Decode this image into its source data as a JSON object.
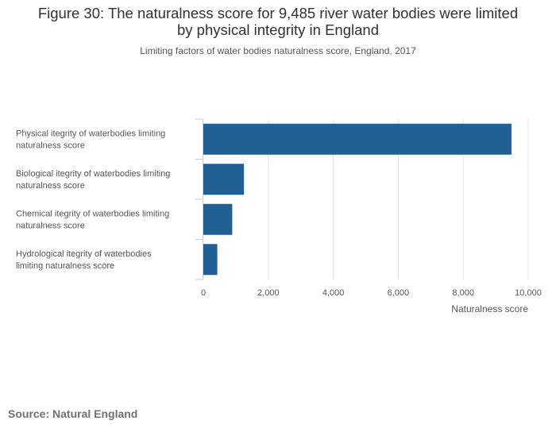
{
  "title": {
    "line1": "Figure 30: The naturalness score for 9,485 river water bodies were limited",
    "line2": "by physical integrity in England"
  },
  "subtitle": "Limiting factors of water bodies naturalness score, England, 2017",
  "source": "Source: Natural England",
  "colors": {
    "bar": "#206095",
    "grid": "#e3e3e3",
    "axis": "#cccccc",
    "text": "#555555"
  },
  "chart_data": {
    "type": "bar",
    "orientation": "horizontal",
    "categories": [
      [
        "Physical itegrity of waterbodies limiting",
        "naturalness score"
      ],
      [
        "Biological itegrity of waterbodies limiting",
        "naturalness score"
      ],
      [
        "Chemical itegrity of waterbodies limiting",
        "naturalness score"
      ],
      [
        "Hydrological itegrity of waterbodies",
        "limiting naturalness score"
      ]
    ],
    "values": [
      9485,
      1250,
      890,
      430
    ],
    "xlabel": "Naturalness score",
    "xlim": [
      0,
      10000
    ],
    "xticks": [
      0,
      2000,
      4000,
      6000,
      8000,
      10000
    ],
    "xtick_labels": [
      "0",
      "2,000",
      "4,000",
      "6,000",
      "8,000",
      "10,000"
    ],
    "grid": true
  }
}
